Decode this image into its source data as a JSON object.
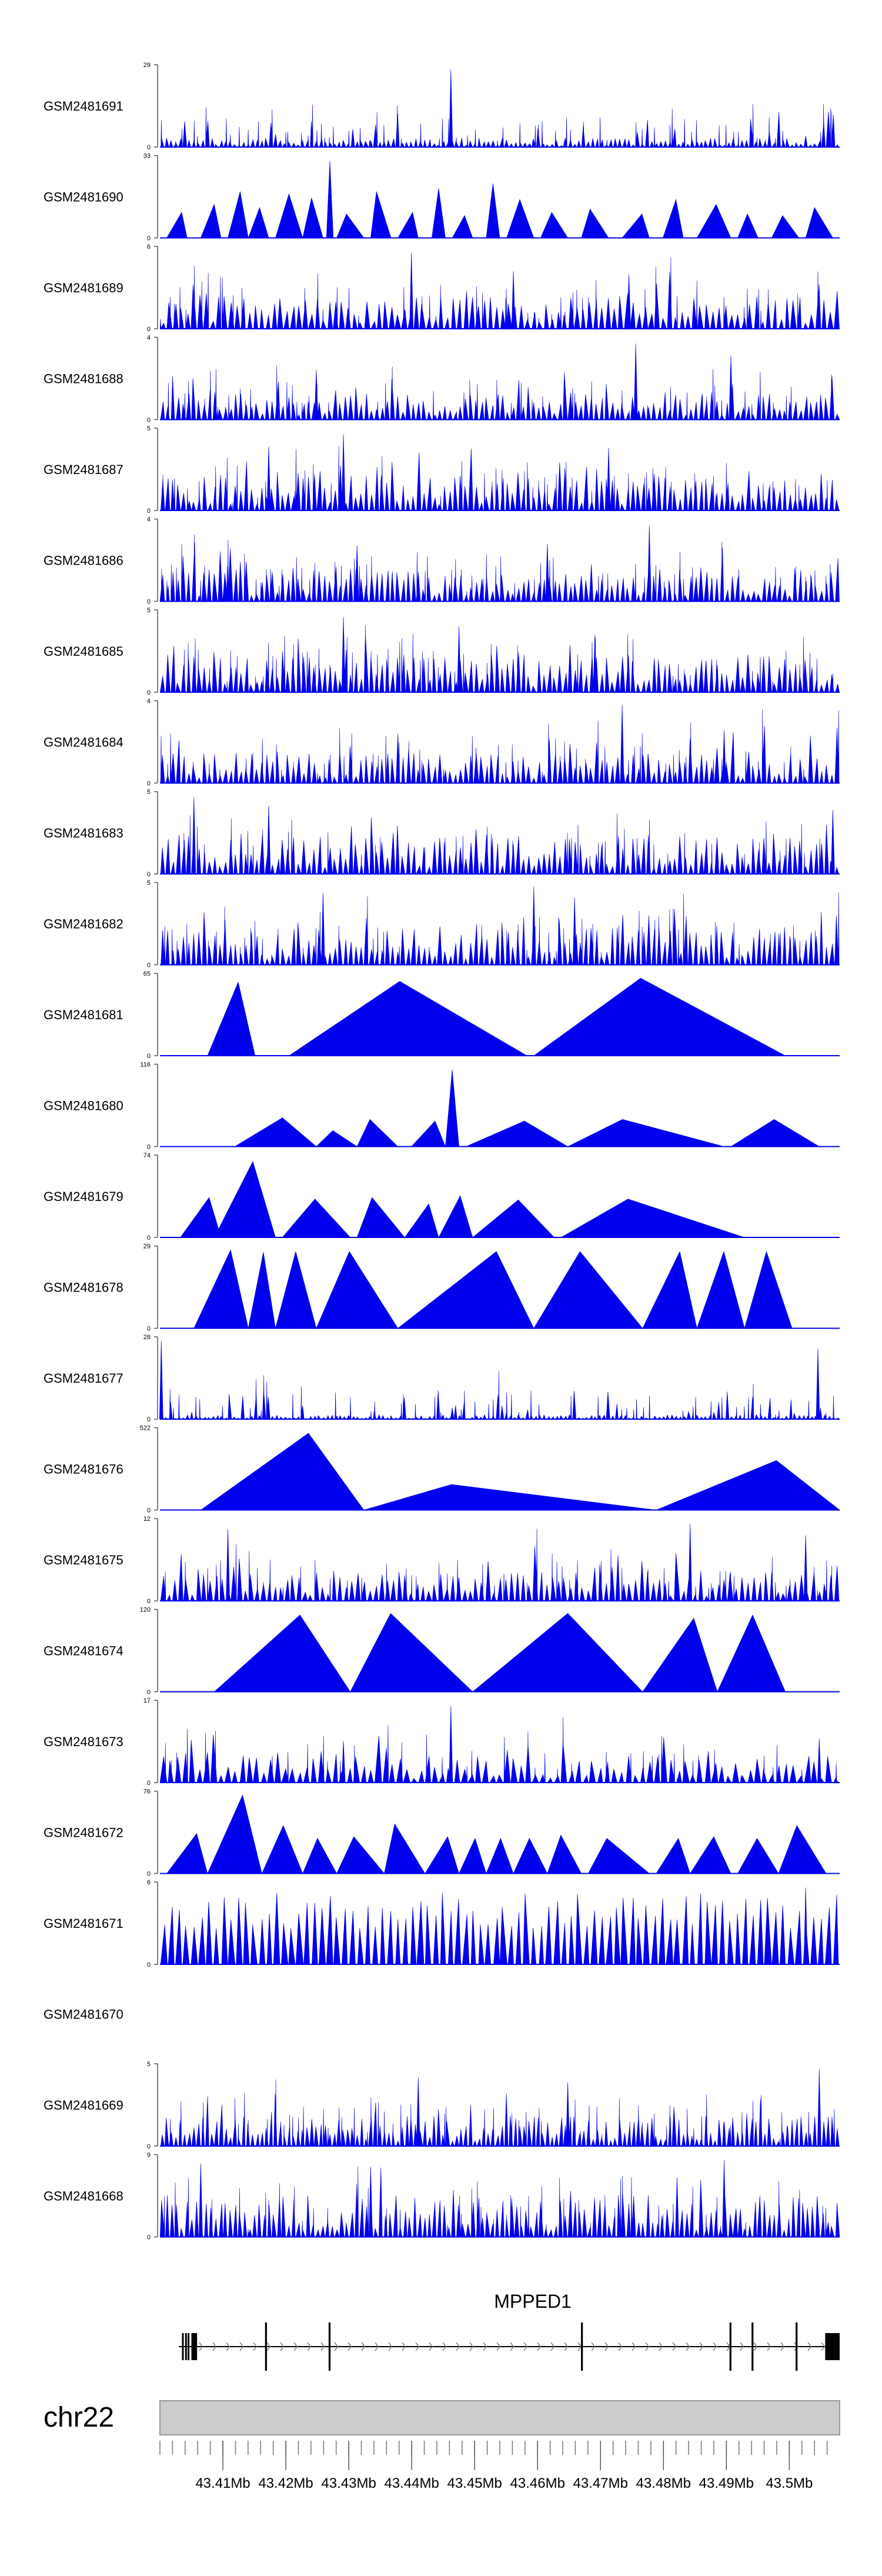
{
  "chart_data": {
    "type": "area",
    "title": "",
    "color": "#0000ee",
    "xlim_mb": [
      43.4,
      43.508
    ],
    "tracks": [
      {
        "name": "GSM2481691",
        "ymax": "29",
        "ymin": "0",
        "pattern": "dense",
        "density": 150,
        "base": 0.06,
        "seed": 11,
        "peaks": [
          [
            0.428,
            0.97
          ],
          [
            0.95,
            0.14
          ]
        ]
      },
      {
        "name": "GSM2481690",
        "ymax": "33",
        "ymin": "0",
        "pattern": "tri",
        "seed": 12,
        "tri": [
          [
            0.01,
            0.04,
            0.32
          ],
          [
            0.06,
            0.09,
            0.42
          ],
          [
            0.1,
            0.13,
            0.58
          ],
          [
            0.13,
            0.16,
            0.38
          ],
          [
            0.17,
            0.21,
            0.55
          ],
          [
            0.21,
            0.24,
            0.5
          ],
          [
            0.245,
            0.255,
            0.96
          ],
          [
            0.26,
            0.3,
            0.3
          ],
          [
            0.31,
            0.34,
            0.58
          ],
          [
            0.35,
            0.38,
            0.32
          ],
          [
            0.4,
            0.42,
            0.62
          ],
          [
            0.43,
            0.46,
            0.28
          ],
          [
            0.48,
            0.5,
            0.68
          ],
          [
            0.51,
            0.55,
            0.48
          ],
          [
            0.56,
            0.6,
            0.32
          ],
          [
            0.62,
            0.66,
            0.36
          ],
          [
            0.68,
            0.72,
            0.3
          ],
          [
            0.74,
            0.77,
            0.48
          ],
          [
            0.79,
            0.84,
            0.42
          ],
          [
            0.85,
            0.88,
            0.3
          ],
          [
            0.9,
            0.94,
            0.28
          ],
          [
            0.95,
            0.99,
            0.38
          ]
        ]
      },
      {
        "name": "GSM2481689",
        "ymax": "6",
        "ymin": "0",
        "pattern": "dense",
        "density": 110,
        "base": 0.22,
        "seed": 13,
        "peaks": [
          [
            0.37,
            0.95
          ],
          [
            0.52,
            0.72
          ],
          [
            0.69,
            0.68
          ]
        ]
      },
      {
        "name": "GSM2481688",
        "ymax": "4",
        "ymin": "0",
        "pattern": "dense",
        "density": 130,
        "base": 0.18,
        "seed": 14,
        "peaks": [
          [
            0.7,
            0.95
          ],
          [
            0.84,
            0.8
          ],
          [
            0.23,
            0.62
          ]
        ]
      },
      {
        "name": "GSM2481687",
        "ymax": "5",
        "ymin": "0",
        "pattern": "dense",
        "density": 130,
        "base": 0.25,
        "seed": 15,
        "peaks": [
          [
            0.27,
            0.95
          ],
          [
            0.16,
            0.8
          ],
          [
            0.66,
            0.78
          ]
        ]
      },
      {
        "name": "GSM2481686",
        "ymax": "4",
        "ymin": "0",
        "pattern": "dense",
        "density": 130,
        "base": 0.22,
        "seed": 16,
        "peaks": [
          [
            0.72,
            0.95
          ],
          [
            0.29,
            0.7
          ],
          [
            0.57,
            0.72
          ]
        ]
      },
      {
        "name": "GSM2481685",
        "ymax": "5",
        "ymin": "0",
        "pattern": "dense",
        "density": 130,
        "base": 0.25,
        "seed": 17,
        "peaks": [
          [
            0.27,
            0.94
          ],
          [
            0.44,
            0.82
          ],
          [
            0.64,
            0.72
          ]
        ]
      },
      {
        "name": "GSM2481684",
        "ymax": "4",
        "ymin": "0",
        "pattern": "dense",
        "density": 130,
        "base": 0.2,
        "seed": 18,
        "peaks": [
          [
            0.68,
            0.98
          ],
          [
            0.35,
            0.62
          ],
          [
            0.83,
            0.66
          ]
        ]
      },
      {
        "name": "GSM2481683",
        "ymax": "5",
        "ymin": "0",
        "pattern": "dense",
        "density": 130,
        "base": 0.25,
        "seed": 19,
        "peaks": [
          [
            0.05,
            0.96
          ],
          [
            0.16,
            0.85
          ],
          [
            0.99,
            0.8
          ]
        ]
      },
      {
        "name": "GSM2481682",
        "ymax": "5",
        "ymin": "0",
        "pattern": "dense",
        "density": 130,
        "base": 0.25,
        "seed": 20,
        "peaks": [
          [
            0.55,
            0.98
          ],
          [
            0.24,
            0.9
          ],
          [
            0.61,
            0.84
          ]
        ]
      },
      {
        "name": "GSM2481681",
        "ymax": "65",
        "ymin": "0",
        "pattern": "tri",
        "seed": 21,
        "tri": [
          [
            0.07,
            0.14,
            0.92
          ],
          [
            0.19,
            0.54,
            0.93
          ],
          [
            0.55,
            0.92,
            0.97
          ]
        ]
      },
      {
        "name": "GSM2481680",
        "ymax": "116",
        "ymin": "0",
        "pattern": "tri",
        "seed": 22,
        "tri": [
          [
            0.11,
            0.23,
            0.36
          ],
          [
            0.23,
            0.29,
            0.2
          ],
          [
            0.29,
            0.35,
            0.34
          ],
          [
            0.37,
            0.42,
            0.32
          ],
          [
            0.42,
            0.44,
            0.96
          ],
          [
            0.45,
            0.6,
            0.32
          ],
          [
            0.6,
            0.83,
            0.34
          ],
          [
            0.84,
            0.97,
            0.34
          ]
        ]
      },
      {
        "name": "GSM2481679",
        "ymax": "74",
        "ymin": "0",
        "pattern": "tri",
        "seed": 23,
        "tri": [
          [
            0.03,
            0.09,
            0.5
          ],
          [
            0.08,
            0.17,
            0.95
          ],
          [
            0.18,
            0.28,
            0.48
          ],
          [
            0.29,
            0.36,
            0.5
          ],
          [
            0.36,
            0.41,
            0.42
          ],
          [
            0.41,
            0.46,
            0.52
          ],
          [
            0.46,
            0.58,
            0.47
          ],
          [
            0.59,
            0.86,
            0.48
          ]
        ]
      },
      {
        "name": "GSM2481678",
        "ymax": "29",
        "ymin": "0",
        "pattern": "tri",
        "seed": 24,
        "tri": [
          [
            0.05,
            0.13,
            0.98
          ],
          [
            0.13,
            0.17,
            0.95
          ],
          [
            0.17,
            0.23,
            0.96
          ],
          [
            0.23,
            0.35,
            0.96
          ],
          [
            0.35,
            0.55,
            0.96
          ],
          [
            0.55,
            0.71,
            0.96
          ],
          [
            0.71,
            0.79,
            0.96
          ],
          [
            0.79,
            0.86,
            0.96
          ],
          [
            0.86,
            0.93,
            0.96
          ]
        ]
      },
      {
        "name": "GSM2481677",
        "ymax": "28",
        "ymin": "0",
        "pattern": "dense",
        "density": 160,
        "base": 0.03,
        "seed": 25,
        "peaks": [
          [
            0.002,
            0.98
          ],
          [
            0.968,
            0.88
          ],
          [
            0.43,
            0.14
          ]
        ]
      },
      {
        "name": "GSM2481676",
        "ymax": "522",
        "ymin": "0",
        "pattern": "tri",
        "seed": 26,
        "tri": [
          [
            0.06,
            0.3,
            0.96
          ],
          [
            0.3,
            0.73,
            0.32
          ],
          [
            0.73,
            1.0,
            0.62
          ]
        ]
      },
      {
        "name": "GSM2481675",
        "ymax": "12",
        "ymin": "0",
        "pattern": "dense",
        "density": 115,
        "base": 0.2,
        "seed": 27,
        "peaks": [
          [
            0.78,
            0.96
          ],
          [
            0.1,
            0.9
          ],
          [
            0.95,
            0.82
          ]
        ]
      },
      {
        "name": "GSM2481674",
        "ymax": "120",
        "ymin": "0",
        "pattern": "tri",
        "seed": 28,
        "tri": [
          [
            0.08,
            0.28,
            0.96
          ],
          [
            0.28,
            0.46,
            0.98
          ],
          [
            0.46,
            0.71,
            0.98
          ],
          [
            0.71,
            0.82,
            0.92
          ],
          [
            0.82,
            0.92,
            0.96
          ]
        ]
      },
      {
        "name": "GSM2481673",
        "ymax": "17",
        "ymin": "0",
        "pattern": "dense",
        "density": 95,
        "base": 0.18,
        "seed": 29,
        "peaks": [
          [
            0.428,
            0.96
          ],
          [
            0.97,
            0.55
          ],
          [
            0.27,
            0.52
          ]
        ]
      },
      {
        "name": "GSM2481672",
        "ymax": "76",
        "ymin": "0",
        "pattern": "tri",
        "seed": 30,
        "tri": [
          [
            0.01,
            0.07,
            0.5
          ],
          [
            0.07,
            0.15,
            0.98
          ],
          [
            0.15,
            0.21,
            0.6
          ],
          [
            0.21,
            0.26,
            0.44
          ],
          [
            0.26,
            0.33,
            0.46
          ],
          [
            0.33,
            0.39,
            0.62
          ],
          [
            0.39,
            0.44,
            0.46
          ],
          [
            0.44,
            0.48,
            0.44
          ],
          [
            0.48,
            0.52,
            0.44
          ],
          [
            0.52,
            0.57,
            0.44
          ],
          [
            0.57,
            0.62,
            0.48
          ],
          [
            0.63,
            0.72,
            0.44
          ],
          [
            0.73,
            0.78,
            0.44
          ],
          [
            0.78,
            0.84,
            0.46
          ],
          [
            0.85,
            0.91,
            0.44
          ],
          [
            0.91,
            0.98,
            0.6
          ]
        ]
      },
      {
        "name": "GSM2481671",
        "ymax": "6",
        "ymin": "0",
        "pattern": "spiky",
        "density": 90,
        "base": 0.45,
        "seed": 31,
        "peaks": [
          [
            0.95,
            0.96
          ]
        ]
      },
      {
        "name": "GSM2481670",
        "ymax": "",
        "ymin": "",
        "pattern": "empty"
      },
      {
        "name": "GSM2481669",
        "ymax": "5",
        "ymin": "0",
        "pattern": "dense",
        "density": 150,
        "base": 0.2,
        "seed": 33,
        "peaks": [
          [
            0.97,
            0.96
          ],
          [
            0.38,
            0.86
          ],
          [
            0.6,
            0.8
          ]
        ]
      },
      {
        "name": "GSM2481668",
        "ymax": "9",
        "ymin": "0",
        "pattern": "dense",
        "density": 140,
        "base": 0.28,
        "seed": 34,
        "peaks": [
          [
            0.83,
            0.96
          ],
          [
            0.06,
            0.92
          ],
          [
            0.31,
            0.88
          ]
        ]
      }
    ],
    "gene": {
      "name": "MPPED1",
      "start_mb": 43.403,
      "end_mb": 43.508,
      "exons_mb": [
        [
          43.4035,
          43.4037
        ],
        [
          43.404,
          43.4042
        ],
        [
          43.4044,
          43.4046
        ],
        [
          43.405,
          43.4059
        ],
        [
          43.4167,
          43.417
        ],
        [
          43.4268,
          43.4271
        ],
        [
          43.4669,
          43.4672
        ],
        [
          43.4905,
          43.4908
        ],
        [
          43.494,
          43.4943
        ],
        [
          43.501,
          43.5013
        ],
        [
          43.5057,
          43.508
        ]
      ]
    },
    "chromosome": "chr22",
    "axis": {
      "major_ticks_mb": [
        43.41,
        43.42,
        43.43,
        43.44,
        43.45,
        43.46,
        43.47,
        43.48,
        43.49,
        43.5
      ],
      "major_labels": [
        "43.41Mb",
        "43.42Mb",
        "43.43Mb",
        "43.44Mb",
        "43.45Mb",
        "43.46Mb",
        "43.47Mb",
        "43.48Mb",
        "43.49Mb",
        "43.5Mb"
      ],
      "minor_step_mb": 0.002
    }
  }
}
